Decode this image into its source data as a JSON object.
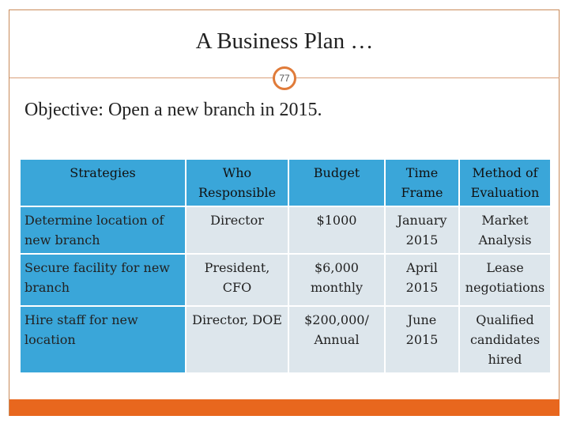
{
  "slide": {
    "title": "A Business Plan …",
    "page_number": "77",
    "objective": "Objective:  Open a new branch in 2015."
  },
  "table": {
    "headers": [
      "Strategies",
      "Who Responsible",
      "Budget",
      "Time Frame",
      "Method of Evaluation"
    ],
    "rows": [
      [
        "Determine location of new branch",
        "Director",
        "$1000",
        "January 2015",
        "Market Analysis"
      ],
      [
        "Secure facility for new branch",
        "President, CFO",
        "$6,000 monthly",
        "April 2015",
        "Lease negotiations"
      ],
      [
        "Hire staff for new location",
        "Director, DOE",
        "$200,000/ Annual",
        "June 2015",
        "Qualified candidates hired"
      ]
    ]
  },
  "colors": {
    "header_fill": "#3aa6d9",
    "cell_fill": "#dde6ec",
    "accent": "#e8671e"
  }
}
